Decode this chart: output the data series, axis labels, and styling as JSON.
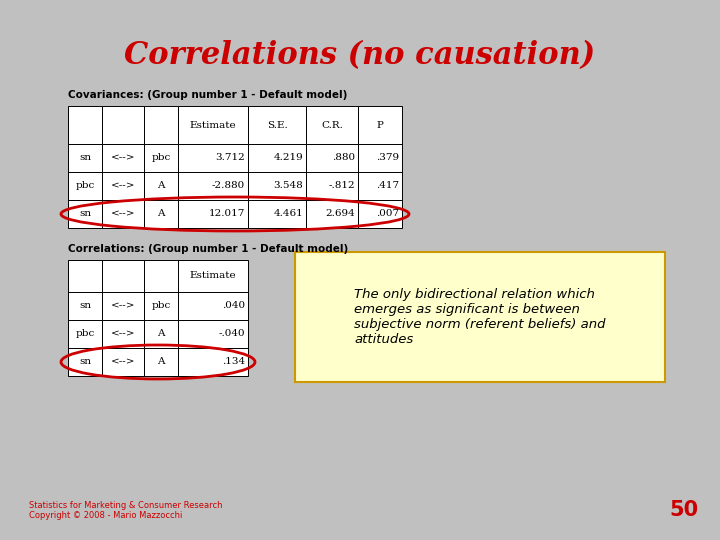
{
  "title": "Correlations (no causation)",
  "title_color": "#CC0000",
  "background_color": "#C0C0C0",
  "slide_bg": "#FFFFFF",
  "cov_label": "Covariances: (Group number 1 - Default model)",
  "cov_headers": [
    "",
    "",
    "",
    "Estimate",
    "S.E.",
    "C.R.",
    "P"
  ],
  "cov_rows": [
    [
      "sn",
      "<-->",
      "pbc",
      "3.712",
      "4.219",
      ".880",
      ".379"
    ],
    [
      "pbc",
      "<-->",
      "A",
      "-2.880",
      "3.548",
      "-.812",
      ".417"
    ],
    [
      "sn",
      "<-->",
      "A",
      "12.017",
      "4.461",
      "2.694",
      ".007"
    ]
  ],
  "cov_highlight_row": 2,
  "corr_label": "Correlations: (Group number 1 - Default model)",
  "corr_headers": [
    "",
    "",
    "",
    "Estimate"
  ],
  "corr_rows": [
    [
      "sn",
      "<-->",
      "pbc",
      ".040"
    ],
    [
      "pbc",
      "<-->",
      "A",
      "-.040"
    ],
    [
      "sn",
      "<-->",
      "A",
      ".134"
    ]
  ],
  "corr_highlight_row": 2,
  "textbox_text": "The only bidirectional relation which\nemerges as significant is between\nsubjective norm (referent beliefs) and\nattitudes",
  "textbox_bg": "#FFFFCC",
  "textbox_border": "#CC9900",
  "footer_text": "Statistics for Marketing & Consumer Research\nCopyright © 2008 - Mario Mazzocchi",
  "page_number": "50",
  "footer_color": "#CC0000",
  "page_color": "#CC0000"
}
